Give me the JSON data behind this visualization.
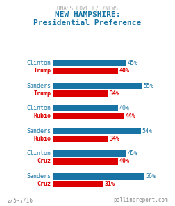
{
  "title_top": "UMASS LOWELL/ 7NEWS",
  "title_main": "NEW HAMPSHIRE:\nPresidential Preference",
  "matchups": [
    {
      "dem": "Clinton",
      "rep": "Trump",
      "dem_val": 45,
      "rep_val": 40
    },
    {
      "dem": "Sanders",
      "rep": "Trump",
      "dem_val": 55,
      "rep_val": 34
    },
    {
      "dem": "Clinton",
      "rep": "Rubio",
      "dem_val": 40,
      "rep_val": 44
    },
    {
      "dem": "Sanders",
      "rep": "Rubio",
      "dem_val": 54,
      "rep_val": 34
    },
    {
      "dem": "Clinton",
      "rep": "Cruz",
      "dem_val": 45,
      "rep_val": 40
    },
    {
      "dem": "Sanders",
      "rep": "Cruz",
      "dem_val": 56,
      "rep_val": 31
    }
  ],
  "dem_color": "#1874a4",
  "rep_color": "#dd0000",
  "bar_height": 0.28,
  "max_val": 60,
  "footnote_left": "2/5-7/16",
  "footnote_right": "pollingreport.com",
  "bg_color": "#ffffff",
  "title_top_color": "#aaaaaa",
  "title_main_color": "#1874a4"
}
